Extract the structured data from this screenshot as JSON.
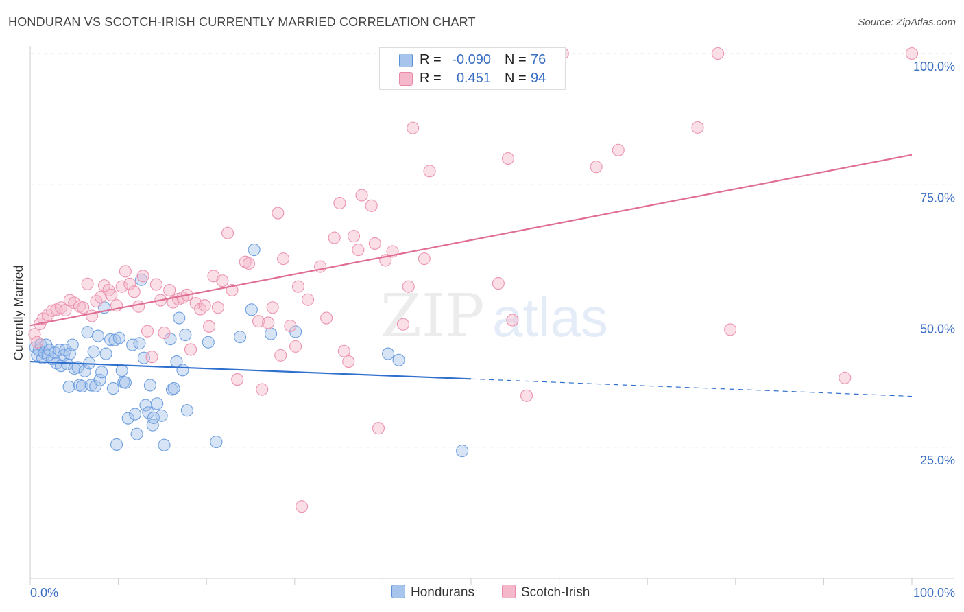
{
  "title": "HONDURAN VS SCOTCH-IRISH CURRENTLY MARRIED CORRELATION CHART",
  "source": "Source: ZipAtlas.com",
  "watermark": {
    "zip": "ZIP",
    "atlas": "atlas"
  },
  "stats": [
    {
      "r_label": "R =",
      "r_value": "-0.090",
      "n_label": "N =",
      "n_value": "76",
      "color": "#a7c4ec",
      "border": "#5b8fd6"
    },
    {
      "r_label": "R =",
      "r_value": "0.451",
      "n_label": "N =",
      "n_value": "94",
      "color": "#f5b8ca",
      "border": "#e68aa8"
    }
  ],
  "legend": [
    {
      "label": "Hondurans",
      "color": "#a7c4ec",
      "border": "#5b8fd6"
    },
    {
      "label": "Scotch-Irish",
      "color": "#f5b8ca",
      "border": "#e68aa8"
    }
  ],
  "chart_data": {
    "type": "scatter",
    "title": "HONDURAN VS SCOTCH-IRISH CURRENTLY MARRIED CORRELATION CHART",
    "xlabel": "",
    "ylabel": "Currently Married",
    "xlim": [
      0,
      100
    ],
    "ylim": [
      0,
      100
    ],
    "x_tick_labels": [
      "0.0%",
      "100.0%"
    ],
    "y_ticks": [
      25,
      50,
      75,
      100
    ],
    "y_tick_labels": [
      "25.0%",
      "50.0%",
      "75.0%",
      "100.0%"
    ],
    "grid": true,
    "series": [
      {
        "name": "Hondurans",
        "color": "#6e9fe0",
        "fill": "#a7c4ec",
        "line_color": "#2f6fce",
        "trend": {
          "x0": 0,
          "y0": 41.3,
          "x1": 50,
          "y1": 38.0,
          "dash_to_x": 100,
          "dash_to_y": 34.7
        },
        "points": [
          [
            0.6,
            44.0
          ],
          [
            0.8,
            42.5
          ],
          [
            1.0,
            43.5
          ],
          [
            1.2,
            44.5
          ],
          [
            1.4,
            42.0
          ],
          [
            1.6,
            43.0
          ],
          [
            1.8,
            44.5
          ],
          [
            2.0,
            42.5
          ],
          [
            2.2,
            43.5
          ],
          [
            2.5,
            41.8
          ],
          [
            2.8,
            43.0
          ],
          [
            3.0,
            41.0
          ],
          [
            3.3,
            43.5
          ],
          [
            3.5,
            40.5
          ],
          [
            3.8,
            42.5
          ],
          [
            4.0,
            43.5
          ],
          [
            4.2,
            40.8
          ],
          [
            4.5,
            42.8
          ],
          [
            4.8,
            44.5
          ],
          [
            5.0,
            40.0
          ],
          [
            4.4,
            36.5
          ],
          [
            5.4,
            40.2
          ],
          [
            5.6,
            36.8
          ],
          [
            5.9,
            36.6
          ],
          [
            6.2,
            39.5
          ],
          [
            6.5,
            46.9
          ],
          [
            6.7,
            41.0
          ],
          [
            6.9,
            36.8
          ],
          [
            7.2,
            43.2
          ],
          [
            7.4,
            36.6
          ],
          [
            7.7,
            46.2
          ],
          [
            7.9,
            37.8
          ],
          [
            8.1,
            39.3
          ],
          [
            8.4,
            51.6
          ],
          [
            8.6,
            42.8
          ],
          [
            9.1,
            45.5
          ],
          [
            9.4,
            36.2
          ],
          [
            9.6,
            45.4
          ],
          [
            9.8,
            25.5
          ],
          [
            10.1,
            45.8
          ],
          [
            10.4,
            39.6
          ],
          [
            10.6,
            37.4
          ],
          [
            10.8,
            37.3
          ],
          [
            11.1,
            30.5
          ],
          [
            11.6,
            44.5
          ],
          [
            11.9,
            31.3
          ],
          [
            12.1,
            27.5
          ],
          [
            12.4,
            44.8
          ],
          [
            12.6,
            56.9
          ],
          [
            12.9,
            42.0
          ],
          [
            13.1,
            33.0
          ],
          [
            13.4,
            31.6
          ],
          [
            13.6,
            36.8
          ],
          [
            13.9,
            29.2
          ],
          [
            14.0,
            30.6
          ],
          [
            14.4,
            33.3
          ],
          [
            14.9,
            31.0
          ],
          [
            15.2,
            25.4
          ],
          [
            15.9,
            45.6
          ],
          [
            16.1,
            36.0
          ],
          [
            16.3,
            36.2
          ],
          [
            16.6,
            41.3
          ],
          [
            16.9,
            49.6
          ],
          [
            17.3,
            39.7
          ],
          [
            17.6,
            46.4
          ],
          [
            17.8,
            32.0
          ],
          [
            20.2,
            45.0
          ],
          [
            21.1,
            26.0
          ],
          [
            23.8,
            46.0
          ],
          [
            25.1,
            51.2
          ],
          [
            25.4,
            62.6
          ],
          [
            27.3,
            46.6
          ],
          [
            30.1,
            47.0
          ],
          [
            40.6,
            42.8
          ],
          [
            41.8,
            41.6
          ],
          [
            49.0,
            24.3
          ]
        ]
      },
      {
        "name": "Scotch-Irish",
        "color": "#ec93b0",
        "fill": "#f5b8ca",
        "line_color": "#e06e94",
        "trend": {
          "x0": 0,
          "y0": 48.2,
          "x1": 100,
          "y1": 80.7
        },
        "points": [
          [
            0.5,
            46.5
          ],
          [
            0.8,
            45.0
          ],
          [
            1.1,
            48.5
          ],
          [
            1.5,
            49.5
          ],
          [
            2.0,
            50.2
          ],
          [
            2.5,
            51.0
          ],
          [
            3.0,
            51.2
          ],
          [
            3.5,
            51.6
          ],
          [
            4.0,
            51.1
          ],
          [
            4.5,
            53.0
          ],
          [
            5.0,
            52.5
          ],
          [
            5.6,
            51.8
          ],
          [
            6.0,
            51.6
          ],
          [
            6.5,
            56.1
          ],
          [
            7.0,
            50.0
          ],
          [
            7.5,
            52.8
          ],
          [
            8.0,
            53.6
          ],
          [
            8.4,
            55.8
          ],
          [
            8.9,
            54.9
          ],
          [
            9.2,
            54.0
          ],
          [
            9.8,
            52.0
          ],
          [
            10.4,
            55.6
          ],
          [
            10.8,
            58.5
          ],
          [
            11.3,
            56.1
          ],
          [
            11.8,
            54.6
          ],
          [
            12.3,
            51.8
          ],
          [
            12.8,
            57.6
          ],
          [
            13.3,
            47.1
          ],
          [
            13.8,
            42.2
          ],
          [
            14.3,
            56.0
          ],
          [
            14.8,
            53.0
          ],
          [
            15.2,
            46.8
          ],
          [
            15.8,
            54.9
          ],
          [
            16.2,
            52.6
          ],
          [
            16.8,
            53.2
          ],
          [
            17.3,
            53.5
          ],
          [
            17.8,
            54.0
          ],
          [
            18.2,
            43.6
          ],
          [
            18.8,
            52.4
          ],
          [
            19.3,
            51.3
          ],
          [
            19.8,
            52.0
          ],
          [
            20.3,
            48.0
          ],
          [
            20.8,
            57.6
          ],
          [
            21.3,
            51.6
          ],
          [
            21.8,
            56.7
          ],
          [
            22.4,
            65.8
          ],
          [
            22.9,
            54.9
          ],
          [
            23.5,
            37.9
          ],
          [
            24.4,
            60.3
          ],
          [
            24.8,
            60.0
          ],
          [
            25.9,
            49.0
          ],
          [
            26.3,
            36.0
          ],
          [
            27.0,
            48.7
          ],
          [
            27.5,
            51.6
          ],
          [
            28.1,
            69.6
          ],
          [
            28.4,
            42.5
          ],
          [
            28.7,
            60.9
          ],
          [
            29.5,
            48.1
          ],
          [
            30.1,
            44.2
          ],
          [
            30.4,
            55.6
          ],
          [
            30.8,
            13.7
          ],
          [
            31.5,
            53.1
          ],
          [
            32.9,
            59.4
          ],
          [
            33.6,
            49.6
          ],
          [
            34.5,
            64.9
          ],
          [
            35.1,
            71.5
          ],
          [
            35.6,
            43.3
          ],
          [
            36.1,
            41.3
          ],
          [
            36.7,
            65.2
          ],
          [
            37.2,
            62.6
          ],
          [
            37.6,
            73.0
          ],
          [
            38.7,
            71.0
          ],
          [
            39.1,
            63.8
          ],
          [
            39.5,
            28.6
          ],
          [
            40.3,
            60.6
          ],
          [
            41.1,
            62.3
          ],
          [
            42.3,
            48.4
          ],
          [
            42.9,
            55.6
          ],
          [
            43.4,
            85.8
          ],
          [
            44.7,
            60.9
          ],
          [
            45.3,
            77.6
          ],
          [
            53.1,
            56.2
          ],
          [
            54.2,
            80.0
          ],
          [
            54.7,
            49.2
          ],
          [
            56.3,
            34.8
          ],
          [
            59.3,
            100.0
          ],
          [
            60.4,
            100.0
          ],
          [
            64.2,
            78.4
          ],
          [
            66.7,
            81.6
          ],
          [
            75.7,
            85.9
          ],
          [
            78.0,
            100.0
          ],
          [
            79.4,
            47.4
          ],
          [
            92.4,
            38.2
          ],
          [
            100.0,
            100.0
          ]
        ]
      }
    ]
  }
}
